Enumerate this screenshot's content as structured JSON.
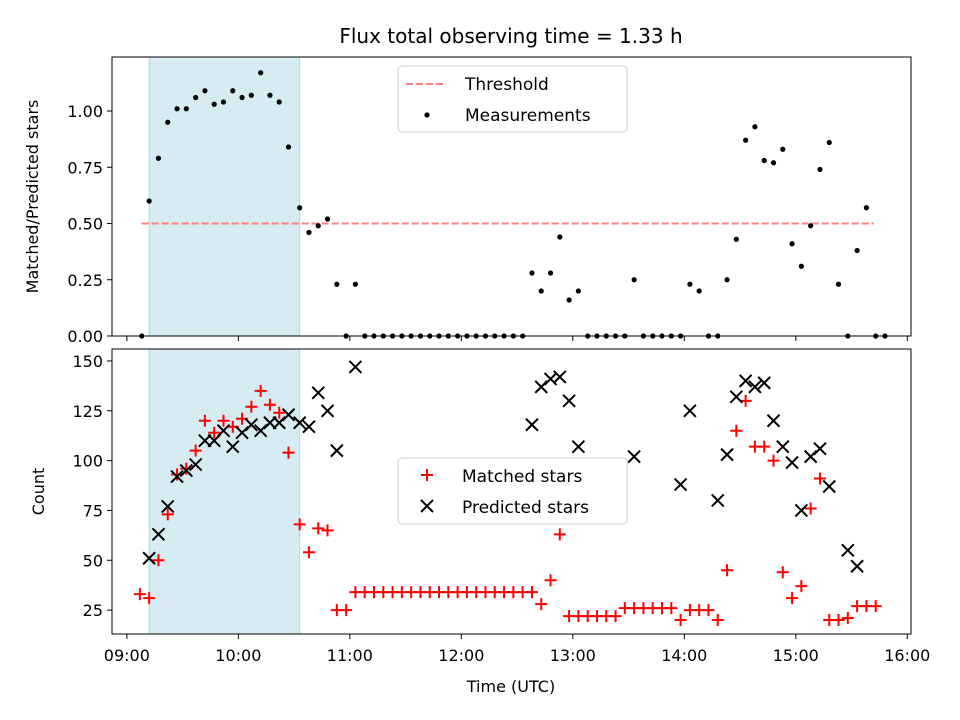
{
  "figure": {
    "title": "Flux total observing time = 1.33 h",
    "xlabel": "Time (UTC)",
    "xticks": [
      "09:00",
      "10:00",
      "11:00",
      "12:00",
      "13:00",
      "14:00",
      "15:00",
      "16:00"
    ],
    "highlight_color": "#add8e6"
  },
  "chart_data": [
    {
      "type": "scatter",
      "ylabel": "Matched/Predicted stars",
      "xlim": [
        "08:52",
        "16:02"
      ],
      "ylim": [
        0,
        1.24
      ],
      "yticks": [
        "0.00",
        "0.25",
        "0.50",
        "0.75",
        "1.00"
      ],
      "highlight_span": [
        "09:12",
        "10:33"
      ],
      "legend": {
        "placement": "top-center",
        "entries": [
          "Threshold",
          "Measurements"
        ]
      },
      "threshold": {
        "name": "Threshold",
        "value": 0.5,
        "x": [
          "09:08",
          "15:42"
        ],
        "color": "#ff8080",
        "style": "dashed"
      },
      "series": [
        {
          "name": "Measurements",
          "marker": "dot",
          "color": "#000000",
          "points": [
            [
              "09:08",
              0.0
            ],
            [
              "09:12",
              0.6
            ],
            [
              "09:17",
              0.79
            ],
            [
              "09:22",
              0.95
            ],
            [
              "09:27",
              1.01
            ],
            [
              "09:32",
              1.01
            ],
            [
              "09:37",
              1.06
            ],
            [
              "09:42",
              1.09
            ],
            [
              "09:47",
              1.03
            ],
            [
              "09:52",
              1.04
            ],
            [
              "09:57",
              1.09
            ],
            [
              "10:02",
              1.06
            ],
            [
              "10:07",
              1.07
            ],
            [
              "10:12",
              1.17
            ],
            [
              "10:17",
              1.07
            ],
            [
              "10:22",
              1.04
            ],
            [
              "10:27",
              0.84
            ],
            [
              "10:33",
              0.57
            ],
            [
              "10:38",
              0.46
            ],
            [
              "10:43",
              0.49
            ],
            [
              "10:48",
              0.52
            ],
            [
              "10:53",
              0.23
            ],
            [
              "10:58",
              0.0
            ],
            [
              "11:03",
              0.23
            ],
            [
              "11:08",
              0.0
            ],
            [
              "11:13",
              0.0
            ],
            [
              "11:18",
              0.0
            ],
            [
              "11:23",
              0.0
            ],
            [
              "11:28",
              0.0
            ],
            [
              "11:33",
              0.0
            ],
            [
              "11:38",
              0.0
            ],
            [
              "11:43",
              0.0
            ],
            [
              "11:48",
              0.0
            ],
            [
              "11:53",
              0.0
            ],
            [
              "11:58",
              0.0
            ],
            [
              "12:03",
              0.0
            ],
            [
              "12:08",
              0.0
            ],
            [
              "12:13",
              0.0
            ],
            [
              "12:18",
              0.0
            ],
            [
              "12:23",
              0.0
            ],
            [
              "12:28",
              0.0
            ],
            [
              "12:33",
              0.0
            ],
            [
              "12:38",
              0.28
            ],
            [
              "12:43",
              0.2
            ],
            [
              "12:48",
              0.28
            ],
            [
              "12:53",
              0.44
            ],
            [
              "12:58",
              0.16
            ],
            [
              "13:03",
              0.2
            ],
            [
              "13:08",
              0.0
            ],
            [
              "13:13",
              0.0
            ],
            [
              "13:18",
              0.0
            ],
            [
              "13:23",
              0.0
            ],
            [
              "13:28",
              0.0
            ],
            [
              "13:33",
              0.25
            ],
            [
              "13:38",
              0.0
            ],
            [
              "13:43",
              0.0
            ],
            [
              "13:48",
              0.0
            ],
            [
              "13:53",
              0.0
            ],
            [
              "13:58",
              0.0
            ],
            [
              "14:03",
              0.23
            ],
            [
              "14:08",
              0.2
            ],
            [
              "14:13",
              0.0
            ],
            [
              "14:18",
              0.0
            ],
            [
              "14:23",
              0.25
            ],
            [
              "14:28",
              0.43
            ],
            [
              "14:33",
              0.87
            ],
            [
              "14:38",
              0.93
            ],
            [
              "14:43",
              0.78
            ],
            [
              "14:48",
              0.77
            ],
            [
              "14:53",
              0.83
            ],
            [
              "14:58",
              0.41
            ],
            [
              "15:03",
              0.31
            ],
            [
              "15:08",
              0.49
            ],
            [
              "15:13",
              0.74
            ],
            [
              "15:18",
              0.86
            ],
            [
              "15:23",
              0.23
            ],
            [
              "15:28",
              0.0
            ],
            [
              "15:33",
              0.38
            ],
            [
              "15:38",
              0.57
            ],
            [
              "15:43",
              0.0
            ],
            [
              "15:48",
              0.0
            ]
          ]
        }
      ]
    },
    {
      "type": "scatter",
      "ylabel": "Count",
      "xlim": [
        "08:52",
        "16:02"
      ],
      "ylim": [
        13,
        156
      ],
      "yticks": [
        "25",
        "50",
        "75",
        "100",
        "125",
        "150"
      ],
      "highlight_span": [
        "09:12",
        "10:33"
      ],
      "legend": {
        "placement": "center",
        "entries": [
          "Matched stars",
          "Predicted stars"
        ]
      },
      "series": [
        {
          "name": "Matched stars",
          "marker": "plus",
          "color": "#ff0000",
          "points": [
            [
              "09:07",
              33
            ],
            [
              "09:12",
              31
            ],
            [
              "09:17",
              50
            ],
            [
              "09:22",
              73
            ],
            [
              "09:27",
              93
            ],
            [
              "09:32",
              96
            ],
            [
              "09:37",
              105
            ],
            [
              "09:42",
              120
            ],
            [
              "09:47",
              114
            ],
            [
              "09:52",
              120
            ],
            [
              "09:57",
              117
            ],
            [
              "10:02",
              121
            ],
            [
              "10:07",
              127
            ],
            [
              "10:12",
              135
            ],
            [
              "10:17",
              128
            ],
            [
              "10:22",
              124
            ],
            [
              "10:27",
              104
            ],
            [
              "10:33",
              68
            ],
            [
              "10:38",
              54
            ],
            [
              "10:43",
              66
            ],
            [
              "10:48",
              65
            ],
            [
              "10:53",
              25
            ],
            [
              "10:58",
              25
            ],
            [
              "11:03",
              34
            ],
            [
              "11:08",
              34
            ],
            [
              "11:13",
              34
            ],
            [
              "11:18",
              34
            ],
            [
              "11:23",
              34
            ],
            [
              "11:28",
              34
            ],
            [
              "11:33",
              34
            ],
            [
              "11:38",
              34
            ],
            [
              "11:43",
              34
            ],
            [
              "11:48",
              34
            ],
            [
              "11:53",
              34
            ],
            [
              "11:58",
              34
            ],
            [
              "12:03",
              34
            ],
            [
              "12:08",
              34
            ],
            [
              "12:13",
              34
            ],
            [
              "12:18",
              34
            ],
            [
              "12:23",
              34
            ],
            [
              "12:28",
              34
            ],
            [
              "12:33",
              34
            ],
            [
              "12:38",
              34
            ],
            [
              "12:43",
              28
            ],
            [
              "12:48",
              40
            ],
            [
              "12:53",
              63
            ],
            [
              "12:58",
              22
            ],
            [
              "13:03",
              22
            ],
            [
              "13:08",
              22
            ],
            [
              "13:13",
              22
            ],
            [
              "13:18",
              22
            ],
            [
              "13:23",
              22
            ],
            [
              "13:28",
              26
            ],
            [
              "13:33",
              26
            ],
            [
              "13:38",
              26
            ],
            [
              "13:43",
              26
            ],
            [
              "13:48",
              26
            ],
            [
              "13:53",
              26
            ],
            [
              "13:58",
              20
            ],
            [
              "14:03",
              25
            ],
            [
              "14:08",
              25
            ],
            [
              "14:13",
              25
            ],
            [
              "14:18",
              20
            ],
            [
              "14:23",
              45
            ],
            [
              "14:28",
              115
            ],
            [
              "14:33",
              130
            ],
            [
              "14:38",
              107
            ],
            [
              "14:43",
              107
            ],
            [
              "14:48",
              100
            ],
            [
              "14:53",
              44
            ],
            [
              "14:58",
              31
            ],
            [
              "15:03",
              37
            ],
            [
              "15:08",
              76
            ],
            [
              "15:13",
              91
            ],
            [
              "15:18",
              20
            ],
            [
              "15:23",
              20
            ],
            [
              "15:28",
              21
            ],
            [
              "15:33",
              27
            ],
            [
              "15:38",
              27
            ],
            [
              "15:43",
              27
            ]
          ]
        },
        {
          "name": "Predicted stars",
          "marker": "cross",
          "color": "#000000",
          "points": [
            [
              "09:12",
              51
            ],
            [
              "09:17",
              63
            ],
            [
              "09:22",
              77
            ],
            [
              "09:27",
              92
            ],
            [
              "09:32",
              95
            ],
            [
              "09:37",
              98
            ],
            [
              "09:42",
              110
            ],
            [
              "09:47",
              110
            ],
            [
              "09:52",
              115
            ],
            [
              "09:57",
              107
            ],
            [
              "10:02",
              114
            ],
            [
              "10:07",
              118
            ],
            [
              "10:12",
              115
            ],
            [
              "10:17",
              119
            ],
            [
              "10:22",
              119
            ],
            [
              "10:27",
              123
            ],
            [
              "10:33",
              119
            ],
            [
              "10:38",
              117
            ],
            [
              "10:43",
              134
            ],
            [
              "10:48",
              125
            ],
            [
              "10:53",
              105
            ],
            [
              "11:03",
              147
            ],
            [
              "12:38",
              118
            ],
            [
              "12:43",
              137
            ],
            [
              "12:48",
              141
            ],
            [
              "12:53",
              142
            ],
            [
              "12:58",
              130
            ],
            [
              "13:03",
              107
            ],
            [
              "13:33",
              102
            ],
            [
              "13:58",
              88
            ],
            [
              "14:03",
              125
            ],
            [
              "14:18",
              80
            ],
            [
              "14:23",
              103
            ],
            [
              "14:28",
              132
            ],
            [
              "14:33",
              140
            ],
            [
              "14:38",
              137
            ],
            [
              "14:43",
              139
            ],
            [
              "14:48",
              120
            ],
            [
              "14:53",
              107
            ],
            [
              "14:58",
              99
            ],
            [
              "15:03",
              75
            ],
            [
              "15:08",
              102
            ],
            [
              "15:13",
              106
            ],
            [
              "15:18",
              87
            ],
            [
              "15:28",
              55
            ],
            [
              "15:33",
              47
            ]
          ]
        }
      ]
    }
  ]
}
